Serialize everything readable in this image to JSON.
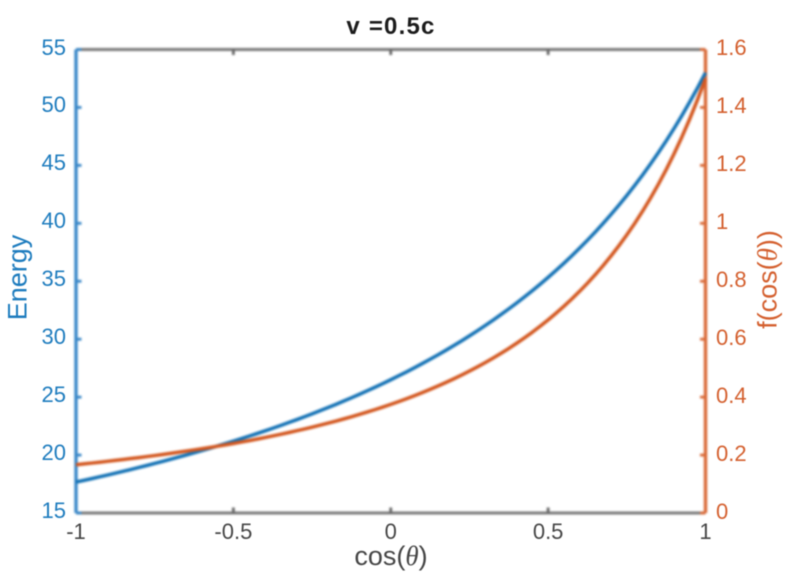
{
  "chart_data": {
    "type": "line",
    "title": "v =0.5c",
    "xlabel_prefix": "cos(",
    "xlabel_theta": "θ",
    "xlabel_suffix": ")",
    "xlabel": "cos(θ)",
    "xlim": [
      -1,
      1
    ],
    "x_ticks": [
      -1,
      -0.5,
      0,
      0.5,
      1
    ],
    "x_tick_labels": [
      "-1",
      "-0.5",
      "0",
      "0.5",
      "1"
    ],
    "grid": false,
    "legend": null,
    "left_axis": {
      "label": "Energy",
      "color": "#0072BD",
      "ylim": [
        15,
        55
      ],
      "ticks": [
        15,
        20,
        25,
        30,
        35,
        40,
        45,
        50,
        55
      ],
      "tick_labels": [
        "15",
        "20",
        "25",
        "30",
        "35",
        "40",
        "45",
        "50",
        "55"
      ]
    },
    "right_axis": {
      "label_prefix": "f(cos(",
      "label_theta": "θ",
      "label_suffix": "))",
      "label": "f(cos(θ))",
      "color": "#D95319",
      "ylim": [
        0,
        1.6
      ],
      "ticks": [
        0,
        0.2,
        0.4,
        0.6,
        0.8,
        1,
        1.2,
        1.4,
        1.6
      ],
      "tick_labels": [
        "0",
        "0.2",
        "0.4",
        "0.6",
        "0.8",
        "1",
        "1.2",
        "1.4",
        "1.6"
      ]
    },
    "x": [
      -1.0,
      -0.975,
      -0.95,
      -0.925,
      -0.9,
      -0.875,
      -0.85,
      -0.825,
      -0.8,
      -0.775,
      -0.75,
      -0.725,
      -0.7,
      -0.675,
      -0.65,
      -0.625,
      -0.6,
      -0.575,
      -0.55,
      -0.525,
      -0.5,
      -0.475,
      -0.45,
      -0.425,
      -0.4,
      -0.375,
      -0.35,
      -0.325,
      -0.3,
      -0.275,
      -0.25,
      -0.225,
      -0.2,
      -0.175,
      -0.15,
      -0.125,
      -0.1,
      -0.075,
      -0.05,
      -0.025,
      0.0,
      0.025,
      0.05,
      0.075,
      0.1,
      0.125,
      0.15,
      0.175,
      0.2,
      0.225,
      0.25,
      0.275,
      0.3,
      0.325,
      0.35,
      0.375,
      0.4,
      0.425,
      0.45,
      0.475,
      0.5,
      0.525,
      0.55,
      0.575,
      0.6,
      0.625,
      0.65,
      0.675,
      0.7,
      0.725,
      0.75,
      0.775,
      0.8,
      0.825,
      0.85,
      0.875,
      0.9,
      0.925,
      0.95,
      0.975,
      1.0
    ],
    "series": [
      {
        "name": "Energy",
        "axis": "left",
        "color": "#0072BD",
        "values": [
          17.667,
          17.815,
          17.966,
          18.12,
          18.276,
          18.435,
          18.596,
          18.761,
          18.929,
          19.099,
          19.273,
          19.45,
          19.63,
          19.813,
          20.0,
          20.19,
          20.385,
          20.583,
          20.784,
          20.99,
          21.2,
          21.414,
          21.633,
          21.856,
          22.083,
          22.316,
          22.553,
          22.796,
          23.043,
          23.297,
          23.556,
          23.82,
          24.091,
          24.368,
          24.651,
          24.941,
          25.238,
          25.542,
          25.854,
          26.173,
          26.5,
          26.835,
          27.179,
          27.532,
          27.895,
          28.267,
          28.649,
          29.041,
          29.444,
          29.859,
          30.286,
          30.725,
          31.176,
          31.642,
          32.121,
          32.615,
          33.125,
          33.651,
          34.194,
          34.754,
          35.333,
          35.932,
          36.552,
          37.193,
          37.857,
          38.545,
          39.259,
          40.0,
          40.769,
          41.569,
          42.4,
          43.265,
          44.167,
          45.106,
          46.087,
          47.111,
          48.182,
          49.302,
          50.476,
          51.707,
          53.0
        ]
      },
      {
        "name": "f(cos(θ))",
        "axis": "right",
        "color": "#D95319",
        "values": [
          0.1667,
          0.1695,
          0.1724,
          0.1753,
          0.1784,
          0.1815,
          0.1847,
          0.188,
          0.1913,
          0.1948,
          0.1983,
          0.202,
          0.2058,
          0.2096,
          0.2136,
          0.2177,
          0.2219,
          0.2262,
          0.2307,
          0.2353,
          0.24,
          0.2449,
          0.2499,
          0.2551,
          0.2604,
          0.2659,
          0.2716,
          0.2775,
          0.2836,
          0.2898,
          0.2963,
          0.303,
          0.3099,
          0.3171,
          0.3245,
          0.3322,
          0.3401,
          0.3484,
          0.3569,
          0.3658,
          0.375,
          0.3846,
          0.3945,
          0.4048,
          0.4155,
          0.4267,
          0.4383,
          0.4504,
          0.463,
          0.4761,
          0.4898,
          0.5041,
          0.519,
          0.5346,
          0.551,
          0.568,
          0.5859,
          0.6047,
          0.6243,
          0.645,
          0.6667,
          0.6895,
          0.7134,
          0.7387,
          0.7653,
          0.7934,
          0.823,
          0.8544,
          0.8876,
          0.9227,
          0.96,
          0.9996,
          1.0417,
          1.0865,
          1.1342,
          1.1852,
          1.2397,
          1.298,
          1.3605,
          1.4277,
          1.5
        ]
      }
    ]
  }
}
